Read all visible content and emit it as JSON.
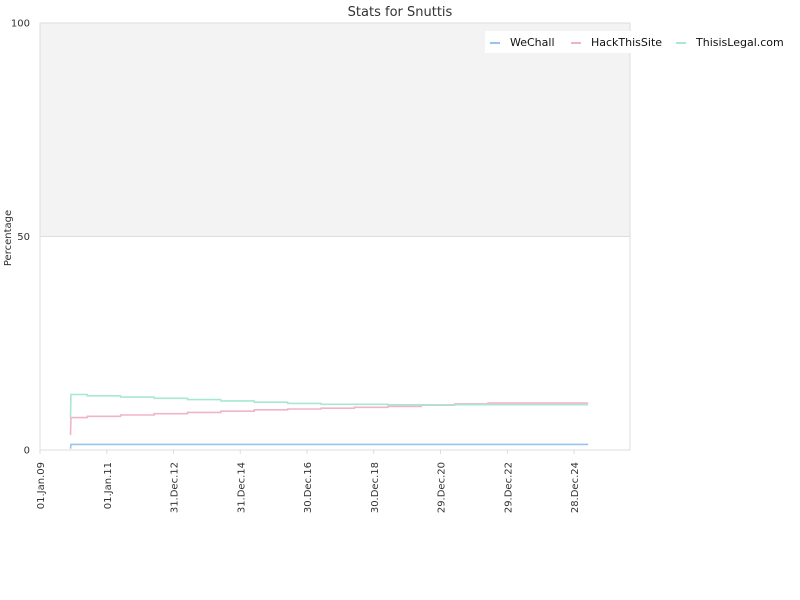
{
  "chart_data": {
    "type": "line",
    "title": "Stats for Snuttis",
    "xlabel": "",
    "ylabel": "Percentage",
    "ylim": [
      0,
      100
    ],
    "yticks": [
      "0",
      "50",
      "100"
    ],
    "xlim": [
      "2009-01-01",
      "2026-09-01"
    ],
    "xticks": [
      {
        "label": "01.Jan.09",
        "date": "2009-01-01"
      },
      {
        "label": "01.Jan.11",
        "date": "2011-01-01"
      },
      {
        "label": "31.Dec.12",
        "date": "2012-12-31"
      },
      {
        "label": "31.Dec.14",
        "date": "2014-12-31"
      },
      {
        "label": "30.Dec.16",
        "date": "2016-12-30"
      },
      {
        "label": "30.Dec.18",
        "date": "2018-12-30"
      },
      {
        "label": "29.Dec.20",
        "date": "2020-12-29"
      },
      {
        "label": "29.Dec.22",
        "date": "2022-12-29"
      },
      {
        "label": "28.Dec.24",
        "date": "2024-12-28"
      }
    ],
    "upper_band": {
      "from": 50,
      "to": 100,
      "color": "#f3f3f3"
    },
    "legend_position": "top-right",
    "series": [
      {
        "name": "WeChall",
        "color": "#99c2ef",
        "points": [
          [
            "2009-12-01",
            0.3
          ],
          [
            "2009-12-05",
            1.3
          ],
          [
            "2011-06-01",
            1.3
          ],
          [
            "2014-06-01",
            1.3
          ],
          [
            "2018-06-01",
            1.3
          ],
          [
            "2022-06-01",
            1.3
          ],
          [
            "2025-06-01",
            1.3
          ]
        ]
      },
      {
        "name": "HackThisSite",
        "color": "#f0b4c8",
        "points": [
          [
            "2009-12-01",
            3.5
          ],
          [
            "2009-12-05",
            7.6
          ],
          [
            "2010-06-01",
            7.6
          ],
          [
            "2010-06-02",
            7.9
          ],
          [
            "2011-06-01",
            7.9
          ],
          [
            "2011-06-02",
            8.2
          ],
          [
            "2012-06-01",
            8.2
          ],
          [
            "2012-06-02",
            8.5
          ],
          [
            "2013-06-01",
            8.5
          ],
          [
            "2013-06-02",
            8.8
          ],
          [
            "2014-06-01",
            8.8
          ],
          [
            "2014-06-02",
            9.1
          ],
          [
            "2015-06-01",
            9.1
          ],
          [
            "2015-06-02",
            9.4
          ],
          [
            "2016-06-01",
            9.4
          ],
          [
            "2016-06-02",
            9.6
          ],
          [
            "2017-06-01",
            9.6
          ],
          [
            "2017-06-02",
            9.8
          ],
          [
            "2018-06-01",
            9.8
          ],
          [
            "2018-06-02",
            10.0
          ],
          [
            "2019-06-01",
            10.0
          ],
          [
            "2019-06-02",
            10.2
          ],
          [
            "2020-06-01",
            10.2
          ],
          [
            "2020-06-02",
            10.5
          ],
          [
            "2021-06-01",
            10.5
          ],
          [
            "2021-06-02",
            10.8
          ],
          [
            "2022-06-01",
            10.8
          ],
          [
            "2022-06-02",
            11.0
          ],
          [
            "2025-06-01",
            11.0
          ]
        ]
      },
      {
        "name": "ThisisLegal.com",
        "color": "#a8e8d0",
        "points": [
          [
            "2009-12-01",
            7.5
          ],
          [
            "2009-12-05",
            13.0
          ],
          [
            "2010-06-01",
            13.0
          ],
          [
            "2010-06-02",
            12.7
          ],
          [
            "2011-06-01",
            12.7
          ],
          [
            "2011-06-02",
            12.4
          ],
          [
            "2012-06-01",
            12.4
          ],
          [
            "2012-06-02",
            12.1
          ],
          [
            "2013-06-01",
            12.1
          ],
          [
            "2013-06-02",
            11.8
          ],
          [
            "2014-06-01",
            11.8
          ],
          [
            "2014-06-02",
            11.5
          ],
          [
            "2015-06-01",
            11.5
          ],
          [
            "2015-06-02",
            11.2
          ],
          [
            "2016-06-01",
            11.2
          ],
          [
            "2016-06-02",
            10.9
          ],
          [
            "2017-06-01",
            10.9
          ],
          [
            "2017-06-02",
            10.7
          ],
          [
            "2019-06-01",
            10.7
          ],
          [
            "2019-06-02",
            10.6
          ],
          [
            "2025-06-01",
            10.6
          ]
        ]
      }
    ]
  }
}
